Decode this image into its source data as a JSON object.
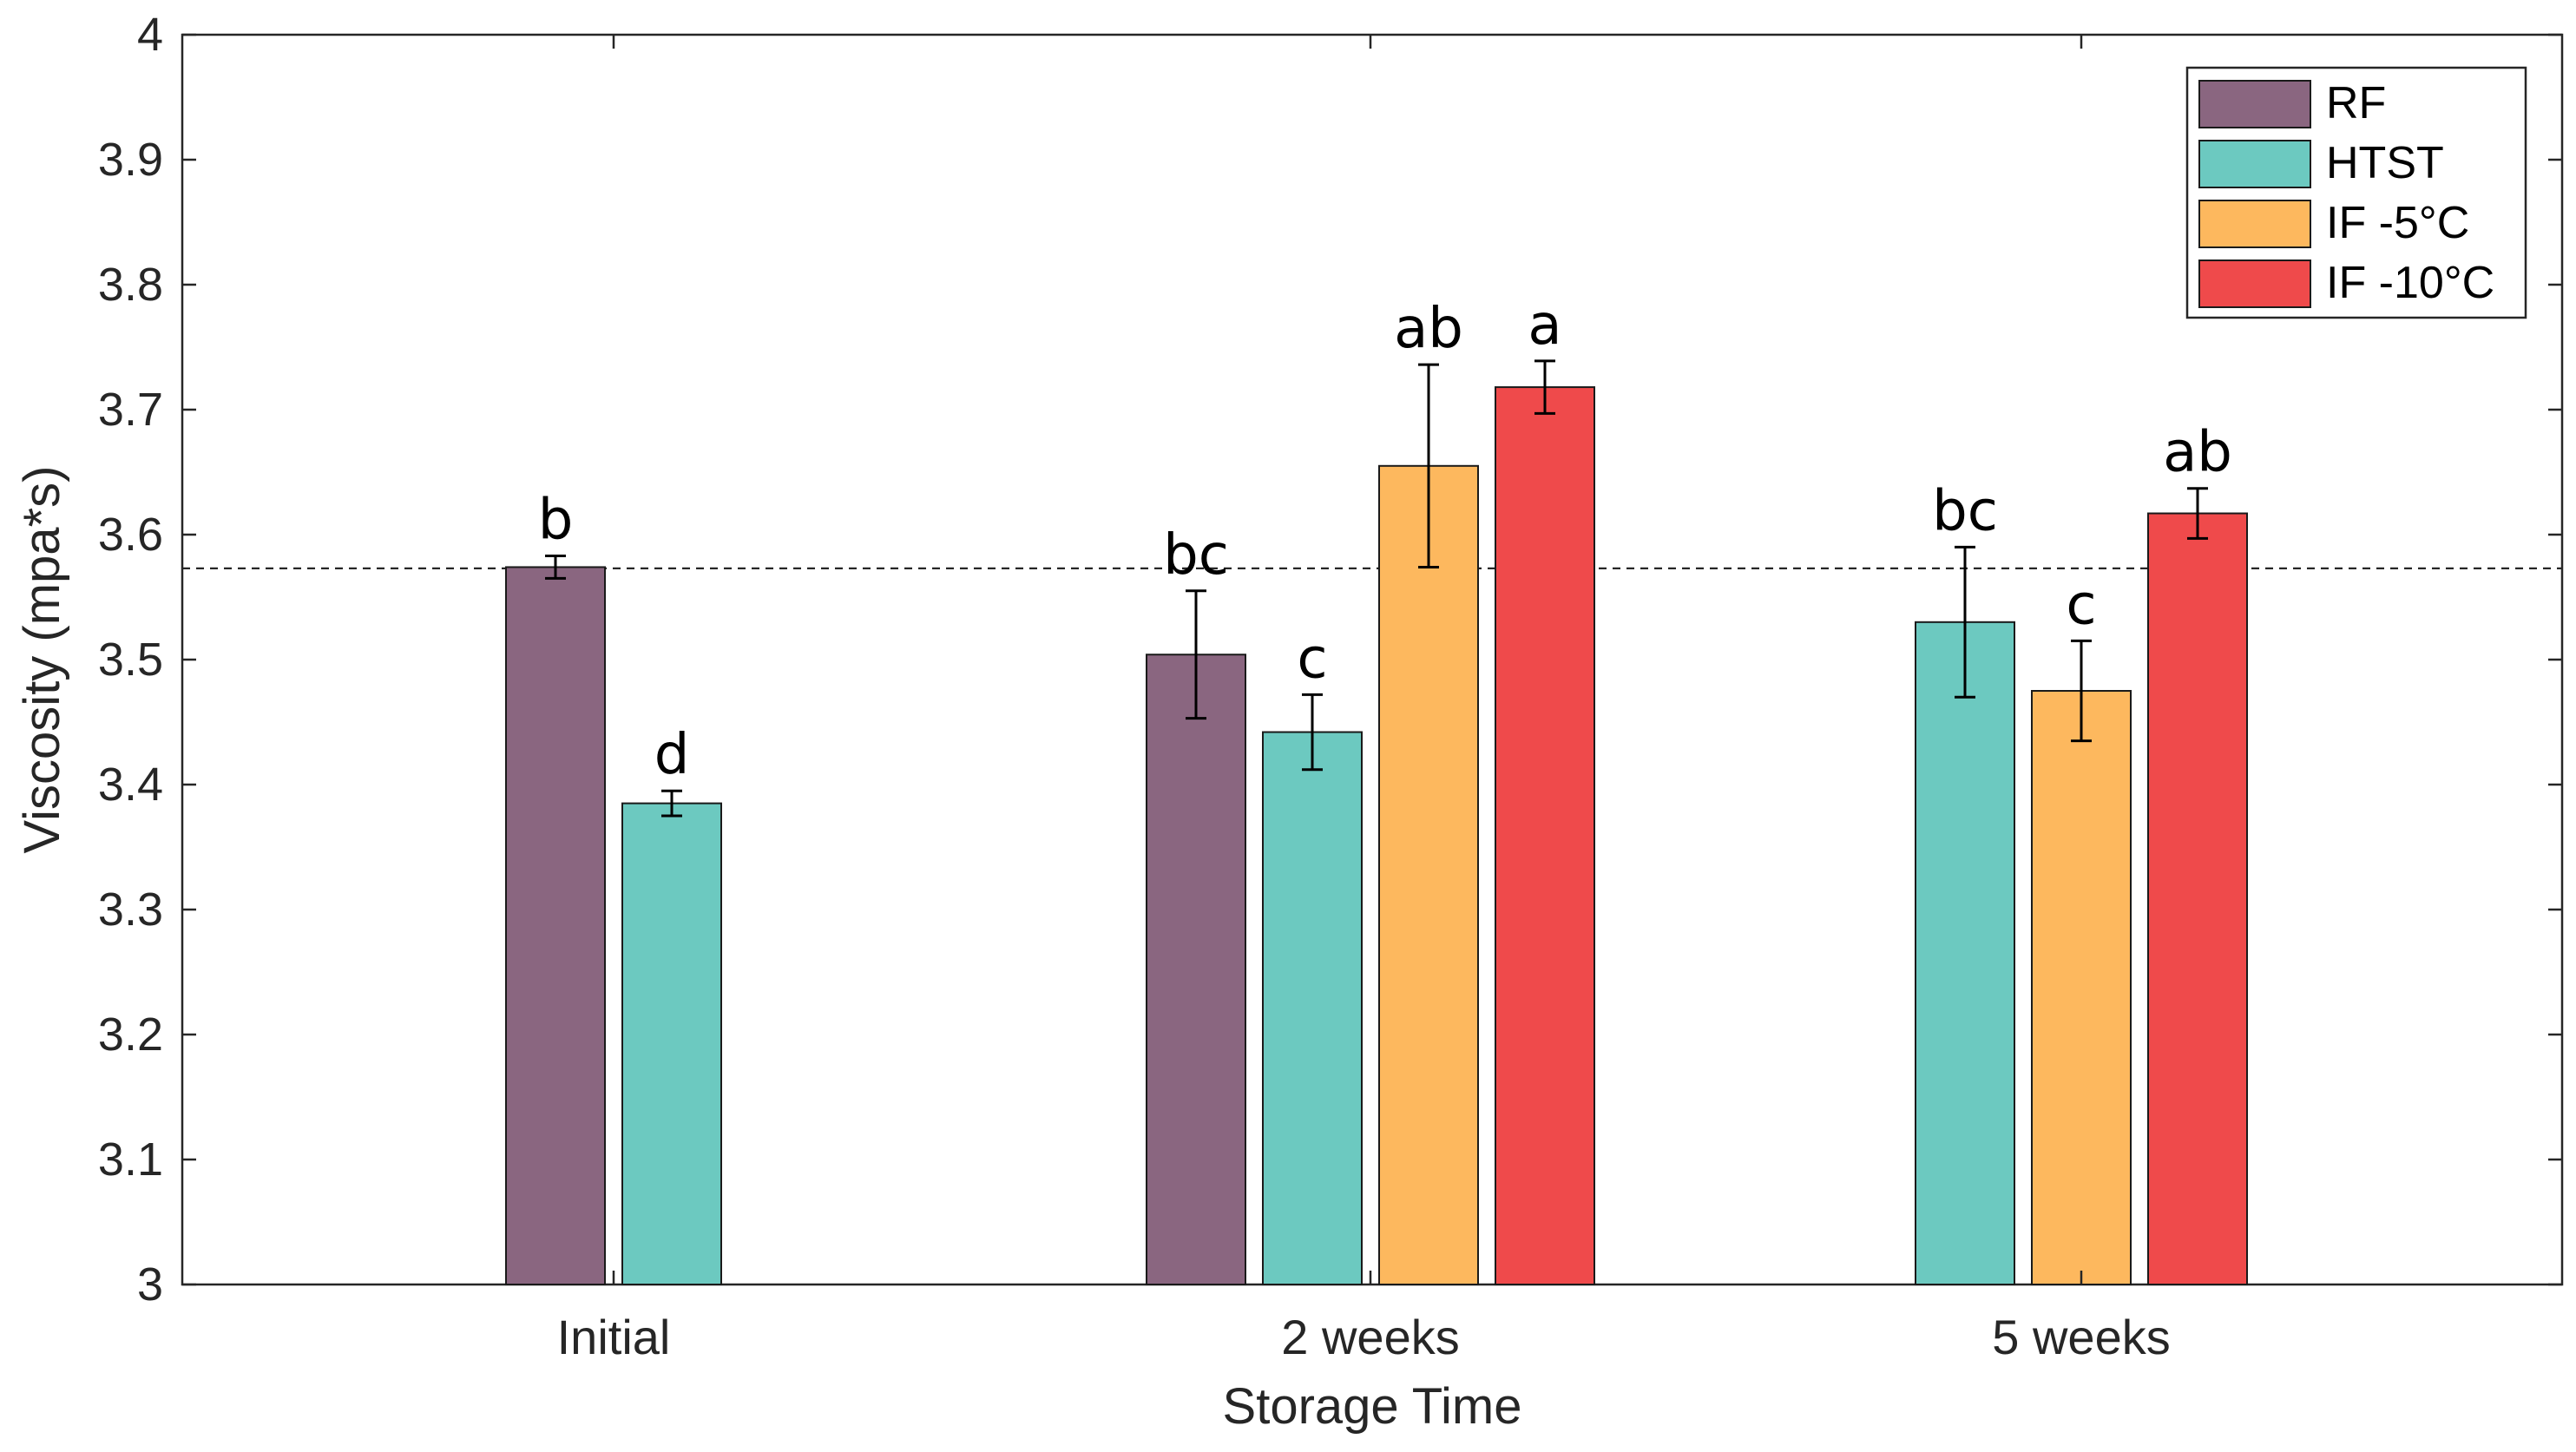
{
  "chart_data": {
    "type": "bar",
    "title": "",
    "xlabel": "Storage Time",
    "ylabel": "Viscosity (mpa*s)",
    "ylim": [
      3,
      4
    ],
    "yticks": [
      {
        "value": 3.0,
        "label": "3"
      },
      {
        "value": 3.1,
        "label": "3.1"
      },
      {
        "value": 3.2,
        "label": "3.2"
      },
      {
        "value": 3.3,
        "label": "3.3"
      },
      {
        "value": 3.4,
        "label": "3.4"
      },
      {
        "value": 3.5,
        "label": "3.5"
      },
      {
        "value": 3.6,
        "label": "3.6"
      },
      {
        "value": 3.7,
        "label": "3.7"
      },
      {
        "value": 3.8,
        "label": "3.8"
      },
      {
        "value": 3.9,
        "label": "3.9"
      },
      {
        "value": 4.0,
        "label": "4"
      }
    ],
    "categories": [
      "Initial",
      "2 weeks",
      "5 weeks"
    ],
    "reference_line": {
      "value": 3.573,
      "style": "dashed"
    },
    "legend_position": "top-right",
    "series": [
      {
        "name": "RF",
        "color": "#8a6680",
        "values": [
          3.574,
          3.504,
          null
        ],
        "errors": [
          0.009,
          0.051,
          null
        ],
        "labels": [
          "b",
          "bc",
          null
        ]
      },
      {
        "name": "HTST",
        "color": "#6cc9c0",
        "values": [
          3.385,
          3.442,
          3.53
        ],
        "errors": [
          0.01,
          0.03,
          0.06
        ],
        "labels": [
          "d",
          "c",
          "bc"
        ]
      },
      {
        "name": "IF -5°C",
        "color": "#fdb85e",
        "values": [
          null,
          3.655,
          3.475
        ],
        "errors": [
          null,
          0.081,
          0.04
        ],
        "labels": [
          null,
          "ab",
          "c"
        ]
      },
      {
        "name": "IF -10°C",
        "color": "#ef4a4b",
        "values": [
          null,
          3.718,
          3.617
        ],
        "errors": [
          null,
          0.021,
          0.02
        ],
        "labels": [
          null,
          "a",
          "ab"
        ]
      }
    ]
  }
}
